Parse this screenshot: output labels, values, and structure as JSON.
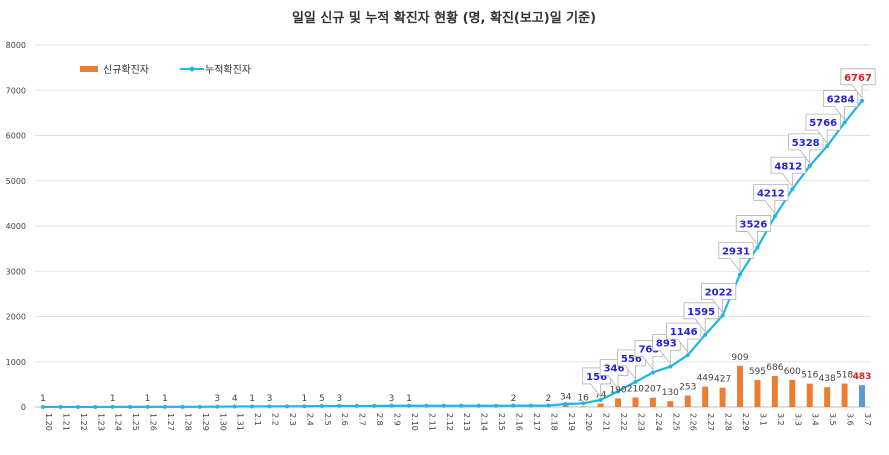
{
  "chart_data": {
    "type": "bar+line",
    "title": "일일 신규 및 누적 확진자 현황 (명, 확진(보고)일 기준)",
    "categories": [
      "1.20",
      "1.21",
      "1.22",
      "1.23",
      "1.24",
      "1.25",
      "1.26",
      "1.27",
      "1.28",
      "1.29",
      "1.30",
      "1.31",
      "2.1",
      "2.2",
      "2.3",
      "2.4",
      "2.5",
      "2.6",
      "2.7",
      "2.8",
      "2.9",
      "2.10",
      "2.11",
      "2.12",
      "2.13",
      "2.14",
      "2.15",
      "2.16",
      "2.17",
      "2.18",
      "2.19",
      "2.20",
      "2.21",
      "2.22",
      "2.23",
      "2.24",
      "2.25",
      "2.26",
      "2.27",
      "2.28",
      "2.29",
      "3.1",
      "3.2",
      "3.3",
      "3.4",
      "3.5",
      "3.6",
      "3.7"
    ],
    "series": [
      {
        "name": "신규확진자",
        "kind": "bar",
        "color": "#ed7d31",
        "values": [
          1,
          0,
          0,
          0,
          1,
          0,
          1,
          1,
          0,
          0,
          3,
          4,
          1,
          3,
          0,
          1,
          5,
          3,
          0,
          0,
          3,
          1,
          0,
          0,
          0,
          0,
          0,
          2,
          0,
          2,
          34,
          16,
          74,
          190,
          210,
          207,
          130,
          253,
          449,
          427,
          909,
          595,
          686,
          600,
          516,
          438,
          518,
          483
        ],
        "labels": [
          "1",
          "",
          "",
          "",
          "1",
          "",
          "1",
          "1",
          "",
          "",
          "3",
          "4",
          "1",
          "3",
          "",
          "1",
          "5",
          "3",
          "",
          "",
          "3",
          "1",
          "",
          "",
          "",
          "",
          "",
          "2",
          "",
          "2",
          "34",
          "16",
          "74",
          "190",
          "210",
          "207",
          "130",
          "253",
          "449",
          "427",
          "909",
          "595",
          "686",
          "600",
          "516",
          "438",
          "518",
          "483"
        ]
      },
      {
        "name": "누적확진자",
        "kind": "line",
        "color": "#1fb5e8",
        "values": [
          1,
          1,
          1,
          1,
          2,
          2,
          3,
          4,
          4,
          4,
          7,
          11,
          12,
          15,
          15,
          16,
          21,
          24,
          24,
          24,
          27,
          28,
          28,
          28,
          28,
          28,
          28,
          30,
          30,
          32,
          66,
          82,
          156,
          346,
          556,
          763,
          893,
          1146,
          1595,
          2022,
          2931,
          3526,
          4212,
          4812,
          5328,
          5766,
          6284,
          6767
        ],
        "labels": [
          "",
          "",
          "",
          "",
          "",
          "",
          "",
          "",
          "",
          "",
          "",
          "",
          "",
          "",
          "",
          "",
          "",
          "",
          "",
          "",
          "",
          "",
          "",
          "",
          "",
          "",
          "",
          "",
          "",
          "",
          "",
          "",
          "156",
          "346",
          "556",
          "763",
          "893",
          "1146",
          "1595",
          "2022",
          "2931",
          "3526",
          "4212",
          "4812",
          "5328",
          "5766",
          "6284",
          "6767"
        ]
      }
    ],
    "yticks": [
      "0",
      "1000",
      "2000",
      "3000",
      "4000",
      "5000",
      "6000",
      "7000",
      "8000"
    ],
    "ylim": [
      0,
      8000
    ],
    "grid": true,
    "legend_position": "top-left",
    "last_bar_color": "#5b9bd5",
    "highlight_color": "#e02020",
    "label_color": "#2222dd"
  }
}
